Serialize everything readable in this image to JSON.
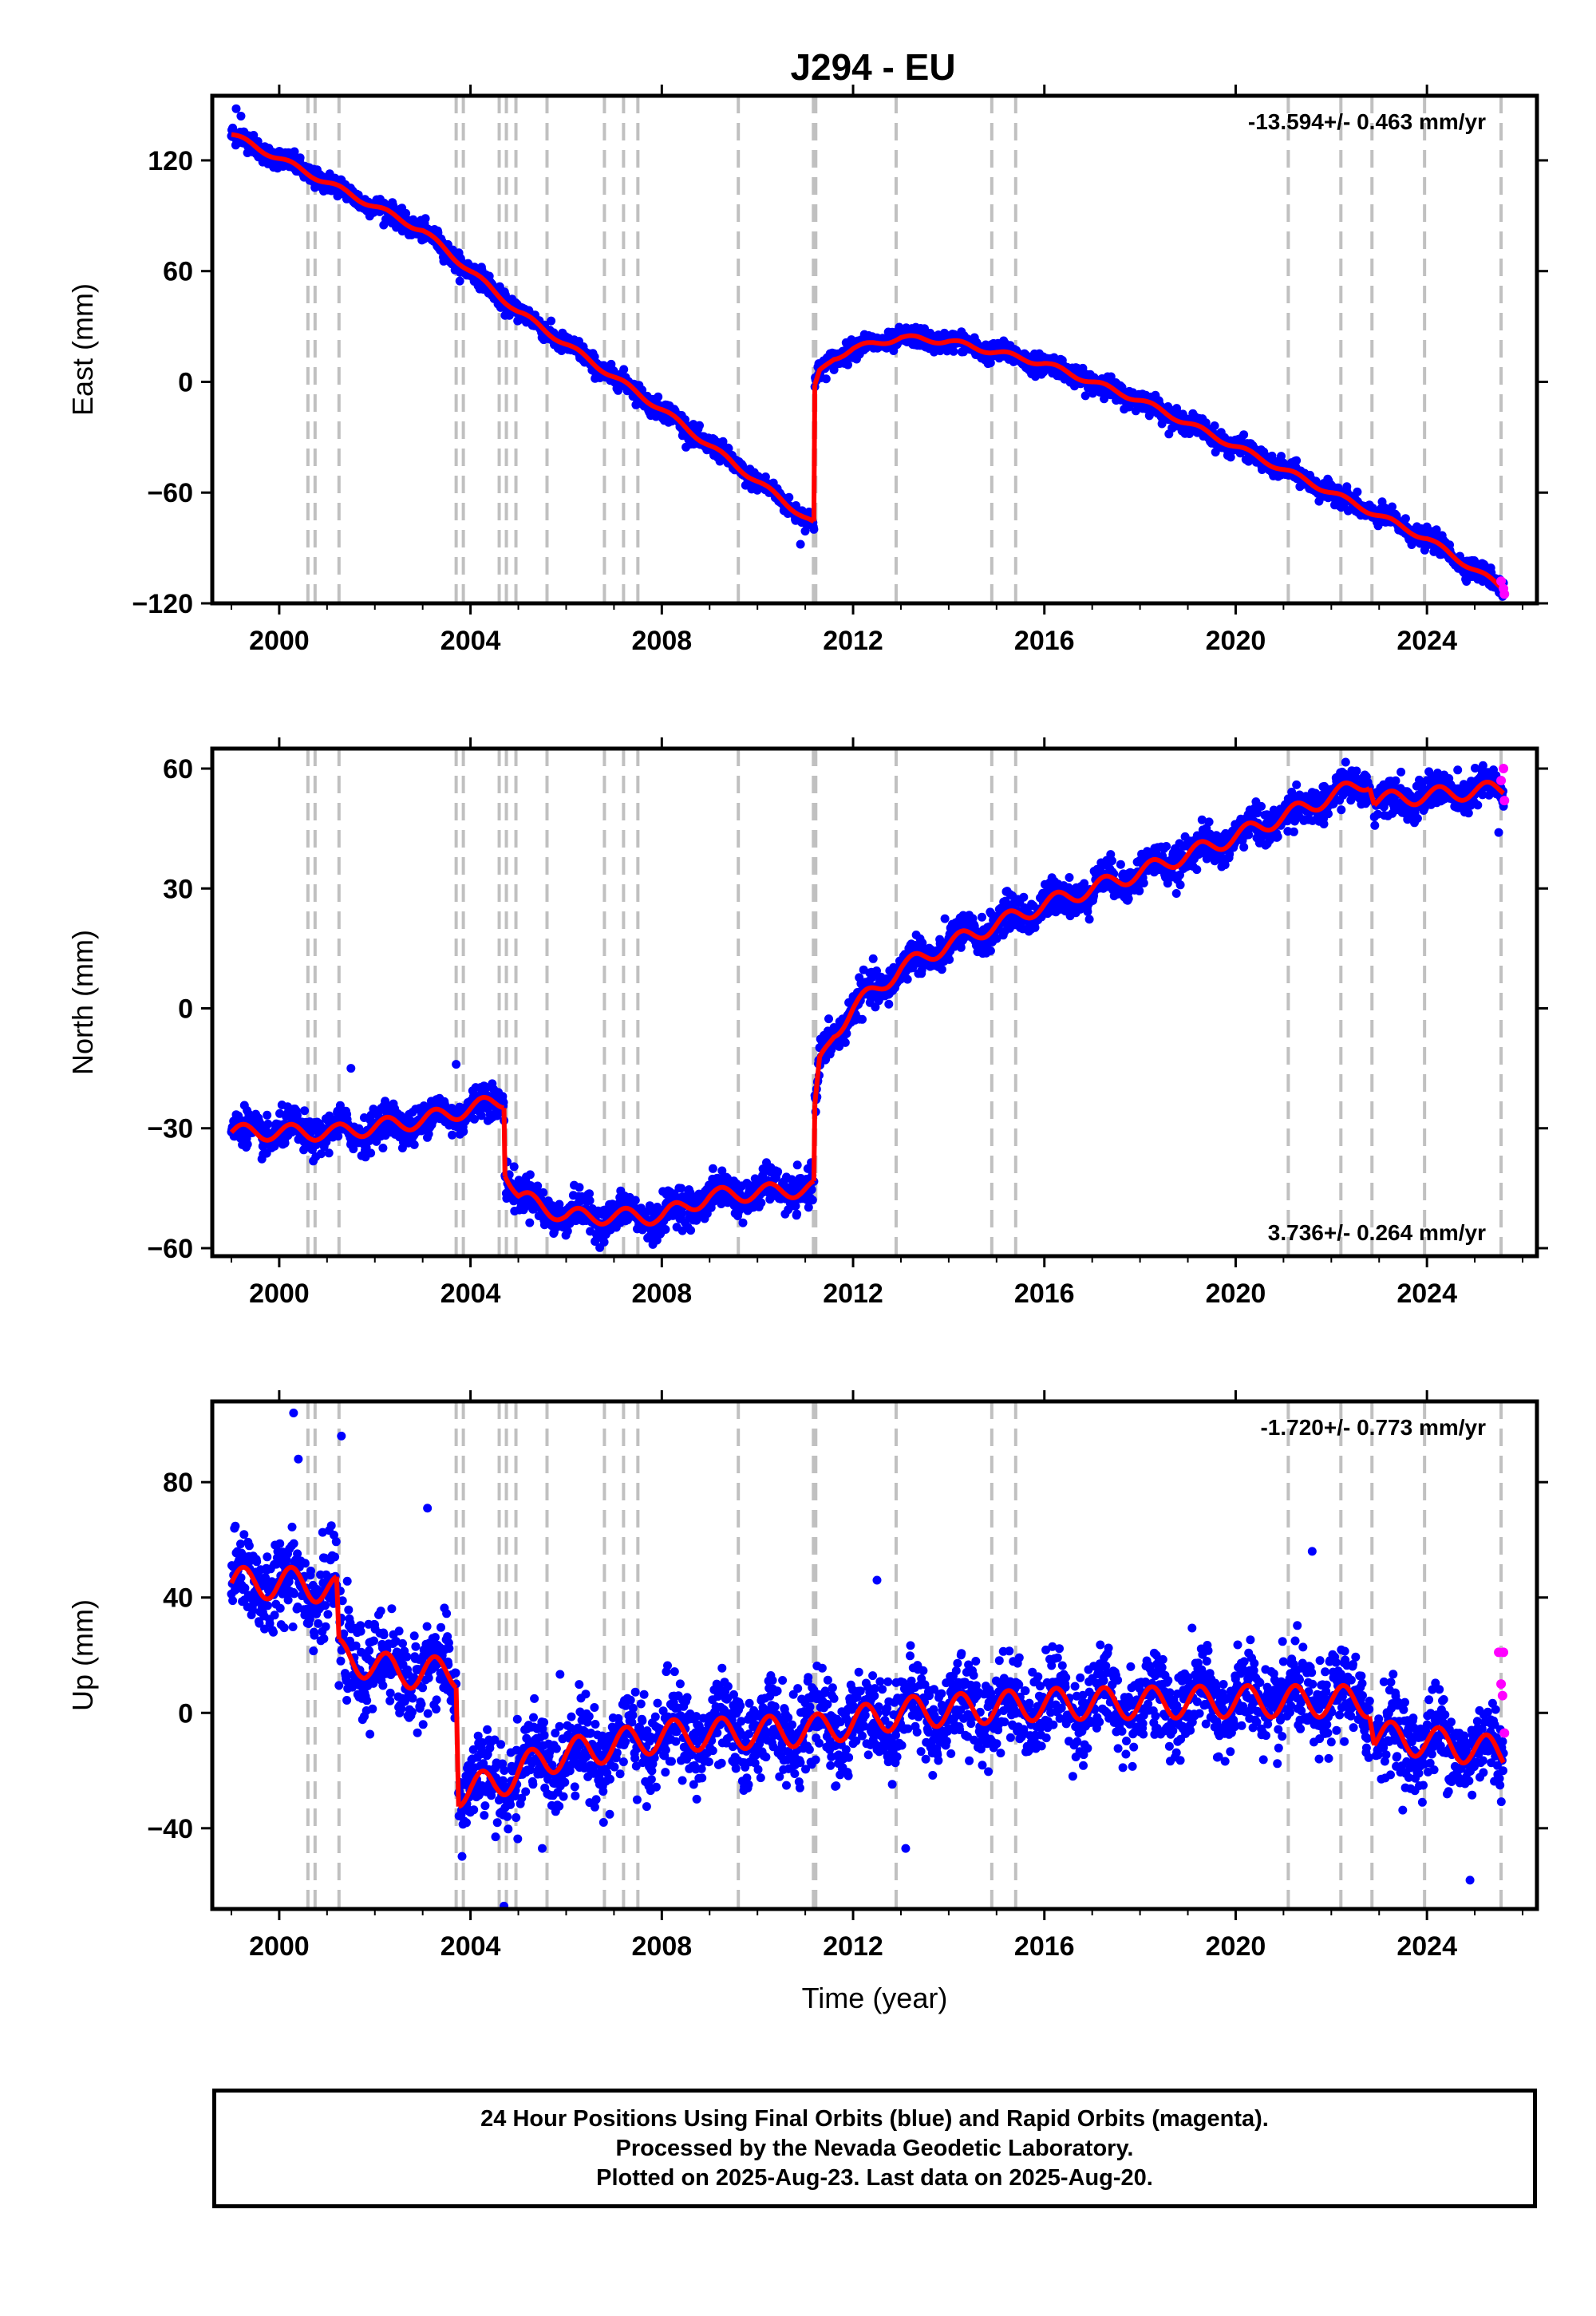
{
  "title": "J294 - EU",
  "colors": {
    "final": "#0000ff",
    "rapid": "#ff00ff",
    "model": "#ff0000",
    "event": "#c0c0c0",
    "frame": "#000000"
  },
  "chart_data": [
    {
      "type": "scatter",
      "component": "East",
      "ylabel": "East (mm)",
      "xlabel": "",
      "xlim": [
        1998.6,
        2026.3
      ],
      "ylim": [
        -120,
        155
      ],
      "xticks": [
        2000,
        2004,
        2008,
        2012,
        2016,
        2020,
        2024
      ],
      "yticks": [
        -120,
        -60,
        0,
        60,
        120
      ],
      "rate_label": "-13.594+/- 0.463 mm/yr",
      "rate_position": "top-right",
      "seasonal_amp": 1.5,
      "scatter_sd": 2.6,
      "model": {
        "x": [
          1999.0,
          2003.0,
          2005.0,
          2008.0,
          2011.18
        ],
        "y": [
          134,
          82,
          38,
          -15,
          -77
        ],
        "x2": [
          2011.2,
          2011.3,
          2011.6,
          2012.0,
          2013.0,
          2014.0,
          2016.0,
          2018.0,
          2020.0,
          2022.0,
          2024.0,
          2025.6
        ],
        "y2": [
          -3,
          5,
          13,
          18,
          24,
          22,
          10,
          -10,
          -35,
          -60,
          -85,
          -112
        ]
      },
      "outlier_points": [
        [
          1999.1,
          148
        ],
        [
          1999.2,
          144
        ],
        [
          2010.9,
          -88
        ],
        [
          2017.5,
          -10
        ]
      ],
      "rapid_points": [
        [
          2025.55,
          -108
        ],
        [
          2025.6,
          -112
        ],
        [
          2025.62,
          -115
        ]
      ]
    },
    {
      "type": "scatter",
      "component": "North",
      "ylabel": "North (mm)",
      "xlabel": "",
      "xlim": [
        1998.6,
        2026.3
      ],
      "ylim": [
        -62,
        65
      ],
      "xticks": [
        2000,
        2004,
        2008,
        2012,
        2016,
        2020,
        2024
      ],
      "yticks": [
        -60,
        -30,
        0,
        30,
        60
      ],
      "rate_label": "3.736+/- 0.264 mm/yr",
      "rate_position": "bottom-right",
      "seasonal_amp": 2.0,
      "scatter_sd": 2.2,
      "model": {
        "x": [
          1999.0,
          2001.2,
          2003.0,
          2004.7
        ],
        "y": [
          -31,
          -31,
          -28,
          -23
        ],
        "x2": [
          2004.72,
          2005.0,
          2006.0,
          2008.0,
          2009.0,
          2011.18
        ],
        "y2": [
          -40,
          -47,
          -52,
          -52,
          -47,
          -45
        ],
        "x3": [
          2011.2,
          2011.3,
          2011.6,
          2012.0,
          2013.0,
          2014.0,
          2016.0,
          2018.0,
          2020.0,
          2022.0,
          2022.8
        ],
        "y3": [
          -26,
          -14,
          -6,
          0,
          10,
          16,
          26,
          34,
          43,
          53,
          57
        ],
        "x4": [
          2022.9,
          2025.6
        ],
        "y4": [
          52,
          55
        ]
      },
      "outlier_points": [
        [
          2003.7,
          -14
        ],
        [
          2001.5,
          -15
        ],
        [
          2007.9,
          -58
        ],
        [
          2025.5,
          44
        ]
      ],
      "rapid_points": [
        [
          2025.55,
          57
        ],
        [
          2025.6,
          60
        ],
        [
          2025.62,
          52
        ]
      ]
    },
    {
      "type": "scatter",
      "component": "Up",
      "ylabel": "Up (mm)",
      "xlabel": "Time (year)",
      "xlim": [
        1998.6,
        2026.3
      ],
      "ylim": [
        -68,
        108
      ],
      "xticks": [
        2000,
        2004,
        2008,
        2012,
        2016,
        2020,
        2024
      ],
      "yticks": [
        -40,
        0,
        40,
        80
      ],
      "rate_label": "-1.720+/- 0.773 mm/yr",
      "rate_position": "top-right",
      "seasonal_amp": 5.5,
      "scatter_sd": 7.5,
      "model": {
        "x": [
          1999.0,
          2000.5,
          2001.2
        ],
        "y": [
          45,
          45,
          42
        ],
        "x2": [
          2001.25,
          2002.5,
          2003.7
        ],
        "y2": [
          20,
          14,
          14
        ],
        "x3": [
          2003.75,
          2004.5,
          2005.5,
          2008.0,
          2011.18
        ],
        "y3": [
          -27,
          -25,
          -16,
          -8,
          -6
        ],
        "x4": [
          2011.2,
          2013.0,
          2016.0,
          2020.0,
          2022.8
        ],
        "y4": [
          -6,
          0,
          3,
          4,
          4
        ],
        "x5": [
          2022.9,
          2024.0,
          2025.6
        ],
        "y5": [
          -8,
          -10,
          -14
        ]
      },
      "outlier_points": [
        [
          2000.3,
          104
        ],
        [
          2001.3,
          96
        ],
        [
          2000.4,
          88
        ],
        [
          2004.7,
          -67
        ],
        [
          2005.5,
          -47
        ],
        [
          2021.6,
          56
        ],
        [
          2024.9,
          -58
        ],
        [
          2012.5,
          46
        ],
        [
          2013.1,
          -47
        ],
        [
          2003.1,
          71
        ]
      ],
      "rapid_points": [
        [
          2025.5,
          21
        ],
        [
          2025.55,
          10
        ],
        [
          2025.58,
          6
        ],
        [
          2025.6,
          21
        ],
        [
          2025.62,
          -7
        ]
      ]
    }
  ],
  "event_lines": [
    2000.6,
    2000.75,
    2001.25,
    2003.7,
    2003.85,
    2004.6,
    2004.75,
    2004.95,
    2005.6,
    2006.8,
    2007.2,
    2007.5,
    2009.6,
    2011.17,
    2011.22,
    2012.9,
    2014.9,
    2015.4,
    2021.1,
    2022.2,
    2022.85,
    2023.95,
    2025.55
  ],
  "footer": {
    "line1": "24 Hour Positions Using Final Orbits (blue) and Rapid Orbits (magenta).",
    "line2": "Processed by the Nevada Geodetic Laboratory.",
    "line3": "Plotted on 2025-Aug-23. Last data on 2025-Aug-20."
  }
}
